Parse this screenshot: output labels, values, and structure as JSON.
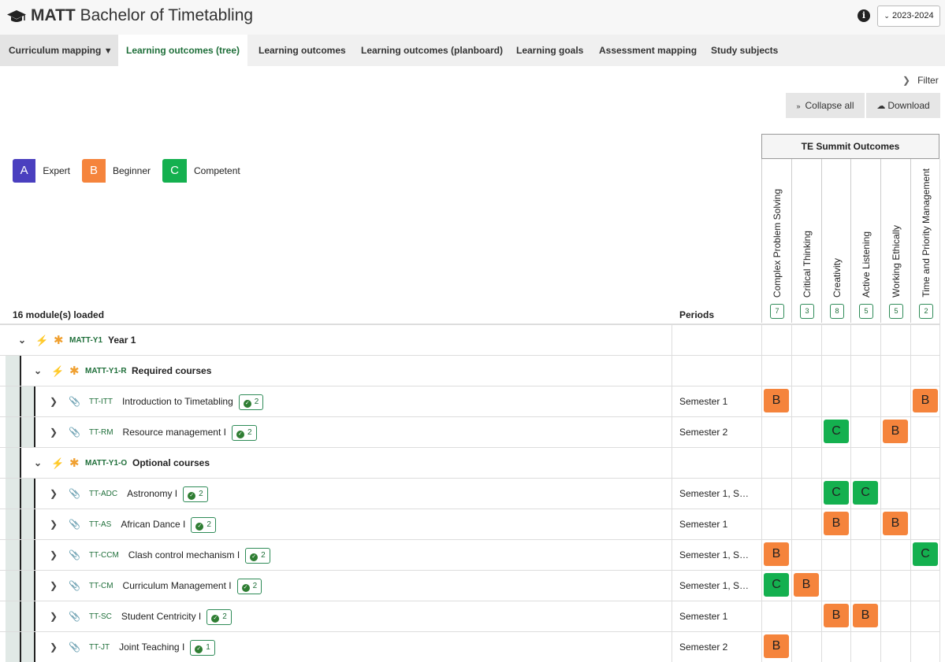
{
  "header": {
    "title_bold": "MATT",
    "title_rest": " Bachelor of Timetabling",
    "year": "2023-2024"
  },
  "tabs": [
    {
      "label": "Curriculum mapping"
    },
    {
      "label": "Learning outcomes (tree)"
    },
    {
      "label": "Learning outcomes"
    },
    {
      "label": "Learning outcomes (planboard)"
    },
    {
      "label": "Learning goals"
    },
    {
      "label": "Assessment mapping"
    },
    {
      "label": "Study subjects"
    }
  ],
  "toolbar": {
    "filter": "Filter",
    "collapse_all": "Collapse all",
    "download": "Download"
  },
  "legend": [
    {
      "letter": "A",
      "label": "Expert",
      "color": "#4a3fbf",
      "bg": "#c3bde8"
    },
    {
      "letter": "B",
      "label": "Beginner",
      "color": "#f5843c",
      "bg": "#fbd0b4"
    },
    {
      "letter": "C",
      "label": "Competent",
      "color": "#14b04f",
      "bg": "#a9e2bf"
    }
  ],
  "outcome_group": "TE Summit Outcomes",
  "outcomes": [
    {
      "label": "Complex Problem Solving",
      "count": "7"
    },
    {
      "label": "Critical Thinking",
      "count": "3"
    },
    {
      "label": "Creativity",
      "count": "8"
    },
    {
      "label": "Active Listening",
      "count": "5"
    },
    {
      "label": "Working Ethically",
      "count": "5"
    },
    {
      "label": "Time and Priority Management",
      "count": "2"
    }
  ],
  "table": {
    "loaded": "16 module(s) loaded",
    "periods_header": "Periods",
    "rows": [
      {
        "level": 0,
        "type": "group",
        "code": "MATT-Y1",
        "name": "Year 1",
        "period": "",
        "cells": [
          "",
          "",
          "",
          "",
          "",
          ""
        ]
      },
      {
        "level": 1,
        "type": "group",
        "code": "MATT-Y1-R",
        "name": "Required courses",
        "period": "",
        "cells": [
          "",
          "",
          "",
          "",
          "",
          ""
        ]
      },
      {
        "level": 2,
        "type": "module",
        "code": "TT-ITT",
        "name": "Introduction to Timetabling",
        "badge": "2",
        "period": "Semester 1",
        "cells": [
          "B",
          "",
          "",
          "",
          "",
          "B"
        ]
      },
      {
        "level": 2,
        "type": "module",
        "code": "TT-RM",
        "name": "Resource management I",
        "badge": "2",
        "period": "Semester 2",
        "cells": [
          "",
          "",
          "C",
          "",
          "B",
          ""
        ]
      },
      {
        "level": 1,
        "type": "group",
        "code": "MATT-Y1-O",
        "name": "Optional courses",
        "period": "",
        "cells": [
          "",
          "",
          "",
          "",
          "",
          ""
        ]
      },
      {
        "level": 2,
        "type": "module",
        "code": "TT-ADC",
        "name": "Astronomy I",
        "badge": "2",
        "period": "Semester 1, Se…",
        "cells": [
          "",
          "",
          "C",
          "C",
          "",
          ""
        ]
      },
      {
        "level": 2,
        "type": "module",
        "code": "TT-AS",
        "name": "African Dance I",
        "badge": "2",
        "period": "Semester 1",
        "cells": [
          "",
          "",
          "B",
          "",
          "B",
          ""
        ]
      },
      {
        "level": 2,
        "type": "module",
        "code": "TT-CCM",
        "name": "Clash control mechanism I",
        "badge": "2",
        "period": "Semester 1, Se…",
        "cells": [
          "B",
          "",
          "",
          "",
          "",
          "C"
        ]
      },
      {
        "level": 2,
        "type": "module",
        "code": "TT-CM",
        "name": "Curriculum Management I",
        "badge": "2",
        "period": "Semester 1, Se…",
        "cells": [
          "C",
          "B",
          "",
          "",
          "",
          ""
        ]
      },
      {
        "level": 2,
        "type": "module",
        "code": "TT-SC",
        "name": "Student Centricity I",
        "badge": "2",
        "period": "Semester 1",
        "cells": [
          "",
          "",
          "B",
          "B",
          "",
          ""
        ]
      },
      {
        "level": 2,
        "type": "module",
        "code": "TT-JT",
        "name": "Joint Teaching I",
        "badge": "1",
        "period": "Semester 2",
        "cells": [
          "B",
          "",
          "",
          "",
          "",
          ""
        ]
      }
    ]
  }
}
